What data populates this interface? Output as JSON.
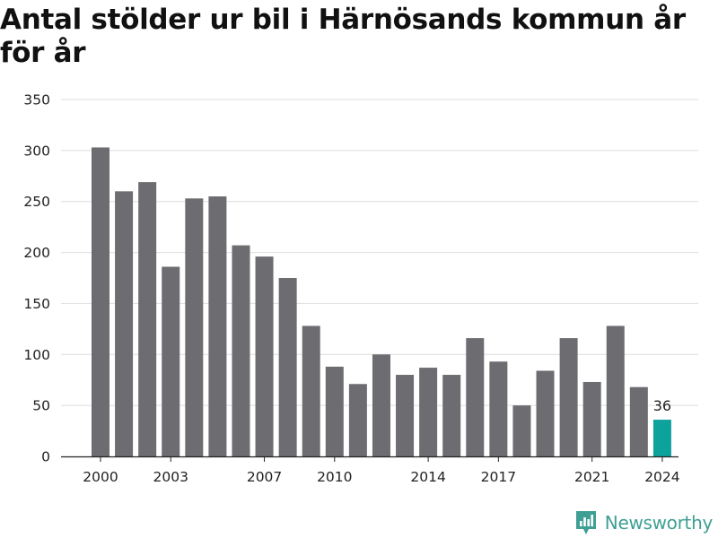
{
  "chart_data": {
    "type": "bar",
    "title": "Antal stölder ur bil i Härnösands kommun år för år",
    "xlabel": "",
    "ylabel": "",
    "ylim": [
      0,
      350
    ],
    "yticks": [
      0,
      50,
      100,
      150,
      200,
      250,
      300,
      350
    ],
    "x": [
      2000,
      2001,
      2002,
      2003,
      2004,
      2005,
      2006,
      2007,
      2008,
      2009,
      2010,
      2011,
      2012,
      2013,
      2014,
      2015,
      2016,
      2017,
      2018,
      2019,
      2020,
      2021,
      2022,
      2023,
      2024
    ],
    "values": [
      303,
      260,
      269,
      186,
      253,
      255,
      207,
      196,
      175,
      128,
      88,
      71,
      100,
      80,
      87,
      80,
      116,
      93,
      50,
      84,
      116,
      73,
      128,
      68,
      36
    ],
    "xtick_labels": [
      "2000",
      "2003",
      "2007",
      "2010",
      "2014",
      "2017",
      "2021",
      "2024"
    ],
    "annotations": [
      {
        "x": 2024,
        "text": "36"
      }
    ],
    "grid": true,
    "colors": {
      "bar": "#6d6c71",
      "highlight": "#0ea29c",
      "grid": "#dedede",
      "axis": "#222222"
    }
  },
  "brand": {
    "name": "Newsworthy",
    "logo_icon": "newsworthy-logo-icon",
    "color": "#3f9f94"
  }
}
